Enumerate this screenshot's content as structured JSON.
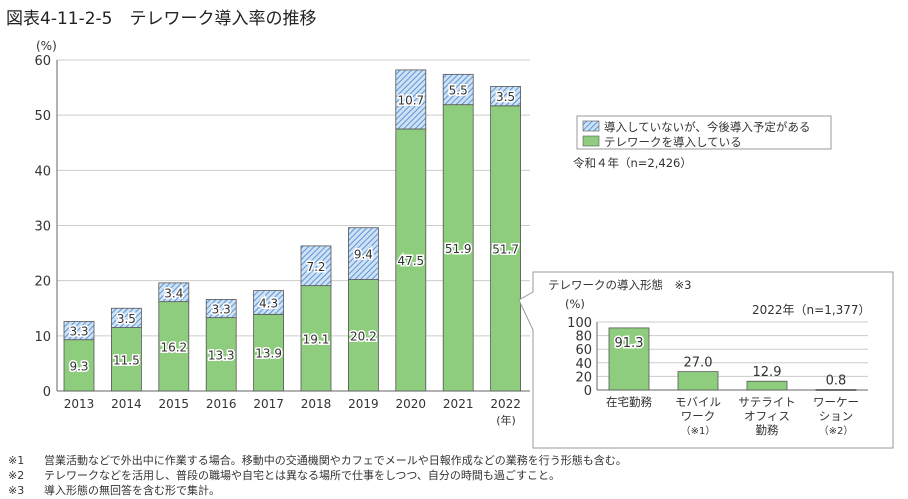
{
  "title": "図表4-11-2-5　テレワーク導入率の推移",
  "chart_data": [
    {
      "type": "bar",
      "stacked": true,
      "title": "テレワーク導入率の推移",
      "ylabel": "(%)",
      "xlabel": "(年)",
      "ylim": [
        0,
        60
      ],
      "yticks": [
        0,
        10,
        20,
        30,
        40,
        50,
        60
      ],
      "categories": [
        "2013",
        "2014",
        "2015",
        "2016",
        "2017",
        "2018",
        "2019",
        "2020",
        "2021",
        "2022"
      ],
      "series": [
        {
          "name": "テレワークを導入している",
          "color": "#8fcd7e",
          "values": [
            9.3,
            11.5,
            16.2,
            13.3,
            13.9,
            19.1,
            20.2,
            47.5,
            51.9,
            51.7
          ]
        },
        {
          "name": "導入していないが、今後導入予定がある",
          "color": "#9cc3e8",
          "pattern": "hatched",
          "values": [
            3.3,
            3.5,
            3.4,
            3.3,
            4.3,
            7.2,
            9.4,
            10.7,
            5.5,
            3.5
          ]
        }
      ],
      "legend_position": "top-right",
      "annotation": "令和４年（n=2,426）"
    },
    {
      "type": "bar",
      "title": "テレワークの導入形態　※3",
      "ylabel": "(%)",
      "ylim": [
        0,
        100
      ],
      "yticks": [
        0,
        20,
        40,
        60,
        80,
        100
      ],
      "annotation": "2022年（n=1,377）",
      "categories": [
        [
          "在宅勤務"
        ],
        [
          "モバイル",
          "ワーク",
          "（※1）"
        ],
        [
          "サテライト",
          "オフィス",
          "勤務"
        ],
        [
          "ワーケー",
          "ション",
          "（※2）"
        ]
      ],
      "values": [
        91.3,
        27.0,
        12.9,
        0.8
      ],
      "color": "#8fcd7e"
    }
  ],
  "notes": [
    {
      "mark": "※1",
      "text": "営業活動などで外出中に作業する場合。移動中の交通機関やカフェでメールや日報作成などの業務を行う形態も含む。"
    },
    {
      "mark": "※2",
      "text": "テレワークなどを活用し、普段の職場や自宅とは異なる場所で仕事をしつつ、自分の時間も過ごすこと。"
    },
    {
      "mark": "※3",
      "text": "導入形態の無回答を含む形で集計。"
    }
  ]
}
